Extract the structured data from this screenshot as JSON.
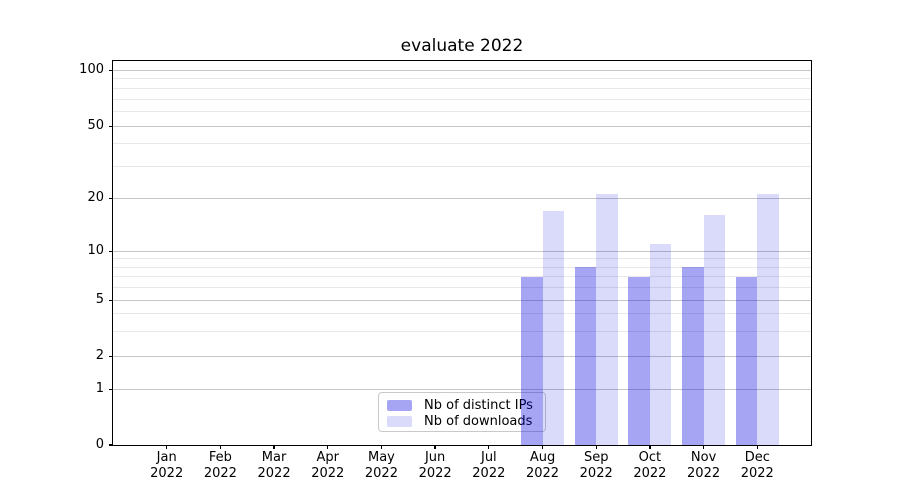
{
  "title": "evaluate 2022",
  "chart_data": {
    "type": "bar",
    "title": "evaluate 2022",
    "categories": [
      "Jan",
      "Feb",
      "Mar",
      "Apr",
      "May",
      "Jun",
      "Jul",
      "Aug",
      "Sep",
      "Oct",
      "Nov",
      "Dec"
    ],
    "year_label": "2022",
    "series": [
      {
        "name": "Nb of distinct IPs",
        "color": "rgba(10,10,225,0.37)",
        "values": [
          0,
          0,
          0,
          0,
          0,
          0,
          0,
          7,
          8,
          7,
          8,
          7
        ]
      },
      {
        "name": "Nb of downloads",
        "color": "rgba(10,10,225,0.15)",
        "values": [
          0,
          0,
          0,
          0,
          0,
          0,
          0,
          17,
          21,
          11,
          16,
          21
        ]
      }
    ],
    "y_axis": {
      "scale": "symlog",
      "range": [
        0,
        100
      ],
      "ticks": [
        0,
        1,
        2,
        5,
        10,
        20,
        50,
        100
      ],
      "minor_ticks": [
        3,
        4,
        6,
        7,
        8,
        9,
        30,
        40,
        60,
        70,
        80,
        90
      ]
    },
    "grid": {
      "enabled": true,
      "major_color": "#c6c6c6",
      "minor_color": "#e8e8e8"
    },
    "legend": {
      "position": "lower center-left",
      "entries": [
        "Nb of distinct IPs",
        "Nb of downloads"
      ]
    }
  }
}
